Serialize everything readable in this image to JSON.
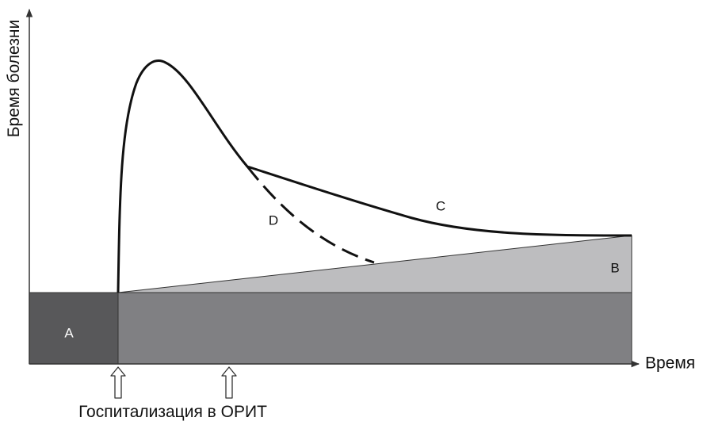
{
  "axes": {
    "y_label": "Бремя болезни",
    "x_label": "Время"
  },
  "regions": {
    "a_label": "A",
    "b_label": "B"
  },
  "curves": {
    "c_label": "C",
    "d_label": "D"
  },
  "annotation": {
    "text": "Госпитализация в ОРИТ",
    "arrow_count": 2
  },
  "colors": {
    "region_a": "#58585a",
    "base_band": "#808083",
    "region_b": "#bdbdbf",
    "curve": "#111111",
    "axis": "#333333"
  }
}
